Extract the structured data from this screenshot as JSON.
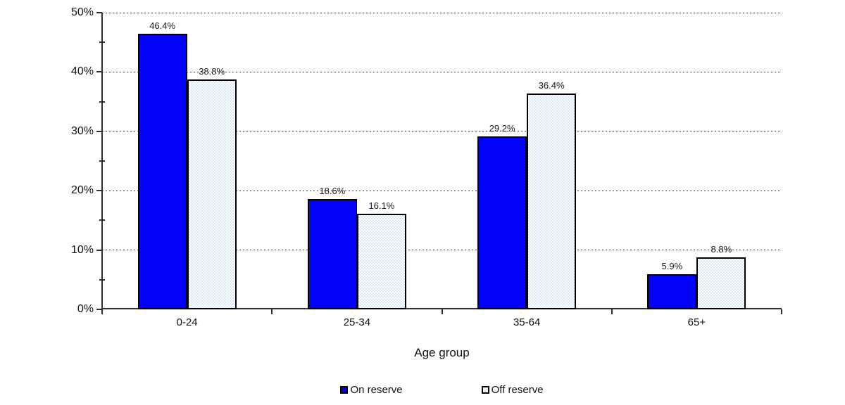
{
  "chart_data": {
    "type": "bar",
    "title": "",
    "xlabel": "Age group",
    "ylabel": "",
    "categories": [
      "0-24",
      "25-34",
      "35-64",
      "65+"
    ],
    "series": [
      {
        "name": "On reserve",
        "color": "#0202fa",
        "fill": "solid",
        "values": [
          46.4,
          18.6,
          29.2,
          5.9
        ],
        "labels": [
          "46.4%",
          "18.6%",
          "29.2%",
          "5.9%"
        ]
      },
      {
        "name": "Off reserve",
        "color": "#d2e6f7",
        "fill": "dotted",
        "values": [
          38.8,
          16.1,
          36.4,
          8.8
        ],
        "labels": [
          "38.8%",
          "16.1%",
          "36.4%",
          "8.8%"
        ]
      }
    ],
    "ylim": [
      0,
      50
    ],
    "ytick_step": 10,
    "ytick_minor_step": 5,
    "ytick_labels": [
      "0%",
      "10%",
      "20%",
      "30%",
      "40%",
      "50%"
    ],
    "grid": "horizontal-dashed-major",
    "legend_position": "bottom-center"
  },
  "colors": {
    "axis": "#2e2e2e",
    "grid": "#3c3c3c",
    "bar_border": "#000000",
    "text": "#111111",
    "background": "#ffffff"
  }
}
